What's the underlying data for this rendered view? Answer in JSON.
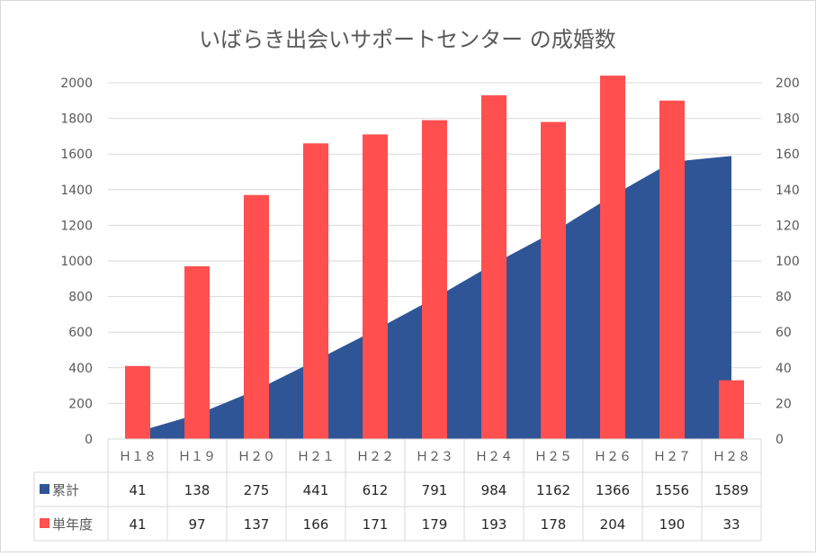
{
  "chart_data": {
    "type": "bar",
    "title": "いばらき出会いサポートセンター の成婚数",
    "categories": [
      "Ｈ１８",
      "Ｈ１９",
      "Ｈ２０",
      "Ｈ２１",
      "Ｈ２２",
      "Ｈ２３",
      "Ｈ２４",
      "Ｈ２５",
      "Ｈ２６",
      "Ｈ２７",
      "Ｈ２８"
    ],
    "series": [
      {
        "name": "累計",
        "type": "area",
        "axis": "left",
        "color": "#2f5597",
        "values": [
          41,
          138,
          275,
          441,
          612,
          791,
          984,
          1162,
          1366,
          1556,
          1589
        ]
      },
      {
        "name": "単年度",
        "type": "bar",
        "axis": "right",
        "color": "#ff4f4f",
        "values": [
          41,
          97,
          137,
          166,
          171,
          179,
          193,
          178,
          204,
          190,
          33
        ]
      }
    ],
    "y_left": {
      "min": 0,
      "max": 2000,
      "step": 200
    },
    "y_right": {
      "min": 0,
      "max": 200,
      "step": 20
    },
    "grid": true,
    "legend": "data-table",
    "data_table": true
  }
}
